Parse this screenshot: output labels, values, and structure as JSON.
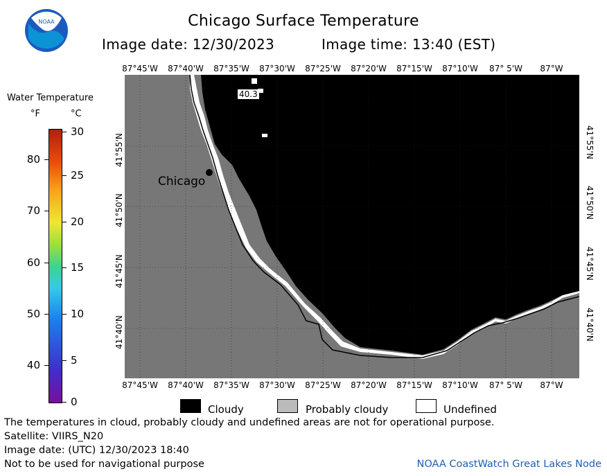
{
  "header": {
    "title": "Chicago Surface Temperature",
    "image_date": "Image date: 12/30/2023",
    "image_time": "Image time: 13:40 (EST)"
  },
  "map": {
    "lon_labels": [
      "87°45'W",
      "87°40'W",
      "87°35'W",
      "87°30'W",
      "87°25'W",
      "87°20'W",
      "87°15'W",
      "87°10'W",
      "87° 5'W",
      "87°W"
    ],
    "lat_labels": [
      "41°55'N",
      "41°50'N",
      "41°45'N",
      "41°40'N"
    ],
    "city": "Chicago",
    "temp_annotation": "40.3",
    "colors": {
      "land": "#777777",
      "cloudy": "#000000",
      "undefined": "#ffffff"
    }
  },
  "colorbar": {
    "title": "Water Temperature",
    "unit_f": "°F",
    "unit_c": "°C",
    "f_ticks": [
      "80",
      "70",
      "60",
      "50",
      "40"
    ],
    "c_ticks": [
      "30",
      "25",
      "20",
      "15",
      "10",
      "5",
      "0"
    ]
  },
  "legend": {
    "cloudy": "Cloudy",
    "probably_cloudy": "Probably cloudy",
    "undefined": "Undefined",
    "colors": {
      "cloudy": "#000000",
      "probably_cloudy": "#bbbbbb",
      "undefined": "#ffffff"
    }
  },
  "footer": {
    "disclaimer": "The temperatures in cloud, probably cloudy and undefined areas are not for operational purpose.",
    "satellite": "Satellite: VIIRS_N20",
    "utc_date": "Image date: (UTC) 12/30/2023  18:40",
    "nav_warning": "Not to be used for navigational purpose",
    "credit": "NOAA CoastWatch Great Lakes Node"
  },
  "logo": {
    "text": "NOAA"
  }
}
